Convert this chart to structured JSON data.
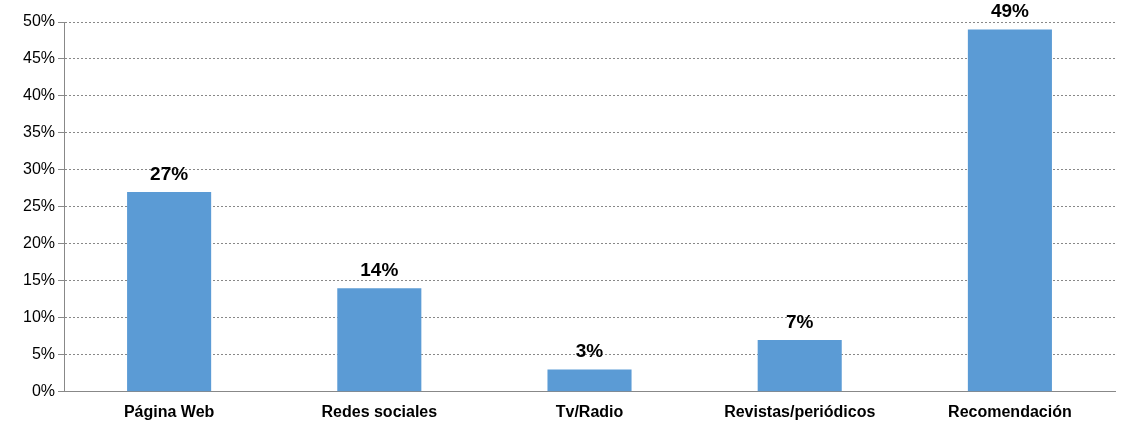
{
  "chart_data": {
    "type": "bar",
    "categories": [
      "Página Web",
      "Redes sociales",
      "Tv/Radio",
      "Revistas/periódicos",
      "Recomendación"
    ],
    "values": [
      27,
      14,
      3,
      7,
      49
    ],
    "value_labels": [
      "27%",
      "14%",
      "3%",
      "7%",
      "49%"
    ],
    "color": "#5b9bd5",
    "ylim": [
      0,
      50
    ],
    "yticks": [
      {
        "value": 0,
        "label": "0%"
      },
      {
        "value": 5,
        "label": "5%"
      },
      {
        "value": 10,
        "label": "10%"
      },
      {
        "value": 15,
        "label": "15%"
      },
      {
        "value": 20,
        "label": "20%"
      },
      {
        "value": 25,
        "label": "25%"
      },
      {
        "value": 30,
        "label": "30%"
      },
      {
        "value": 35,
        "label": "35%"
      },
      {
        "value": 40,
        "label": "40%"
      },
      {
        "value": 45,
        "label": "45%"
      },
      {
        "value": 50,
        "label": "50%"
      }
    ],
    "grid": "y",
    "legend": false
  }
}
